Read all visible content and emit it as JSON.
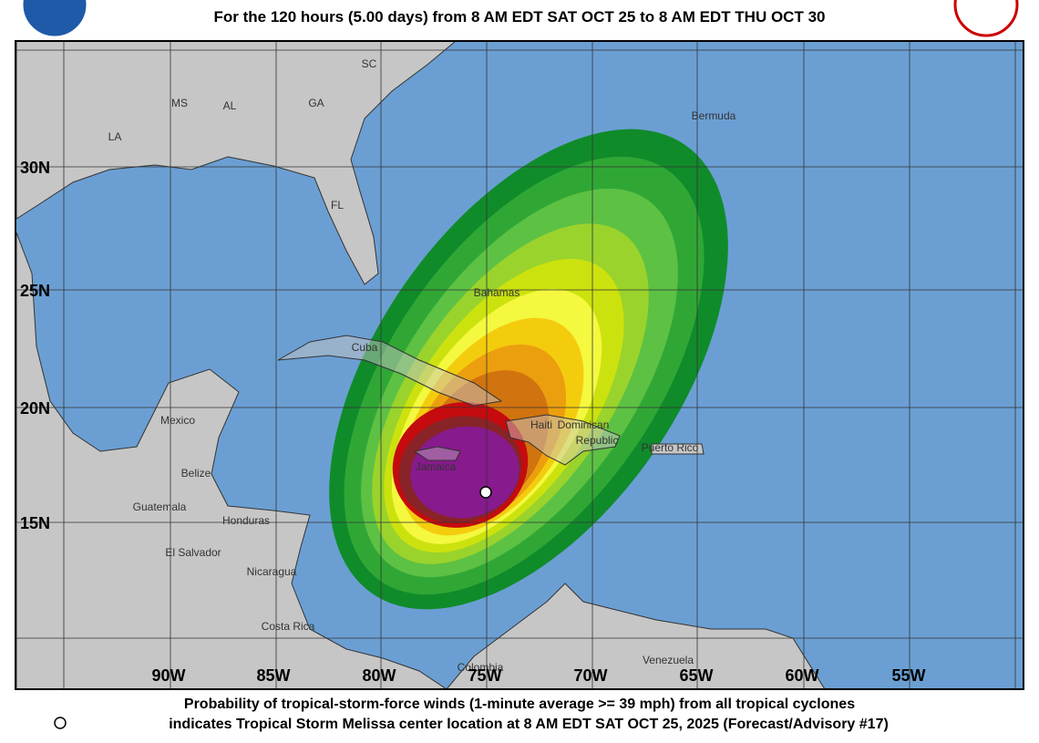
{
  "header": {
    "subtitle": "For the 120 hours (5.00 days) from 8 AM EDT SAT OCT 25 to 8 AM EDT THU OCT 30"
  },
  "map": {
    "lat_labels": [
      "30N",
      "25N",
      "20N",
      "15N"
    ],
    "lon_labels": [
      "90W",
      "85W",
      "80W",
      "75W",
      "70W",
      "65W",
      "60W",
      "55W"
    ],
    "places": [
      "SC",
      "MS",
      "AL",
      "GA",
      "LA",
      "FL",
      "Bermuda",
      "Bahamas",
      "Cuba",
      "Mexico",
      "Haiti",
      "Dominican",
      "Republic",
      "Jamaica",
      "Puerto Rico",
      "Belize",
      "Guatemala",
      "Honduras",
      "El Salvador",
      "Nicaragua",
      "Costa Rica",
      "Colombia",
      "Venezuela"
    ]
  },
  "footer": {
    "lines": [
      "Probability of tropical-storm-force winds (1-minute average >= 39 mph) from all tropical cyclones",
      "indicates Tropical Storm Melissa center location at 8 AM EDT SAT OCT 25, 2025 (Forecast/Advisory #17)"
    ]
  }
}
